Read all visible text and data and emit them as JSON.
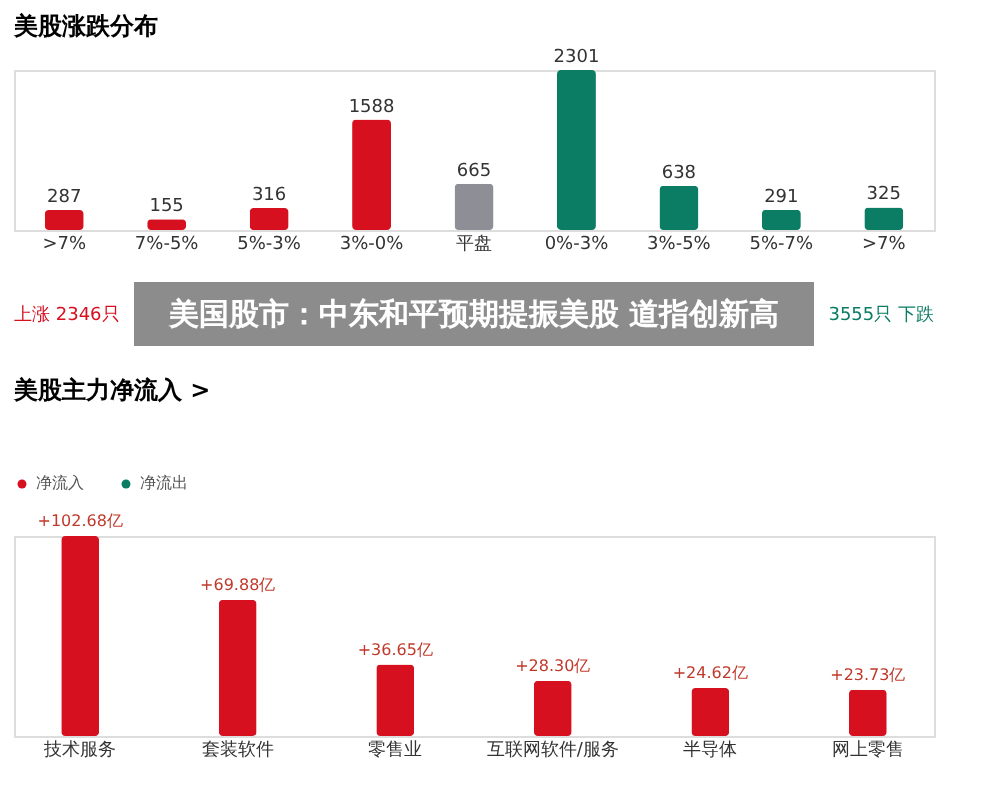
{
  "chart_data": [
    {
      "type": "bar",
      "title": "美股涨跌分布",
      "categories": [
        ">7%",
        "7%-5%",
        "5%-3%",
        "3%-0%",
        "平盘",
        "0%-3%",
        "3%-5%",
        "5%-7%",
        ">7%"
      ],
      "values": [
        287,
        155,
        316,
        1588,
        665,
        2301,
        638,
        291,
        325
      ],
      "colors": [
        "#d7101f",
        "#d7101f",
        "#d7101f",
        "#d7101f",
        "#8e8f96",
        "#0a7d64",
        "#0a7d64",
        "#0a7d64",
        "#0a7d64"
      ],
      "data_labels": true,
      "tick_labels": "x",
      "annotations": [
        "上涨 2346只",
        "3555只 下跌",
        "美国股市：中东和平预期提振美股 道指创新高"
      ]
    },
    {
      "type": "bar",
      "title": "美股主力净流入 >",
      "categories": [
        "技术服务",
        "套装软件",
        "零售业",
        "互联网软件/服务",
        "半导体",
        "网上零售"
      ],
      "series": [
        {
          "name": "净流入",
          "color": "#d7101f",
          "values": [
            102.68,
            69.88,
            36.65,
            28.3,
            24.62,
            23.73
          ],
          "value_labels": [
            "+102.68亿",
            "+69.88亿",
            "+36.65亿",
            "+28.30亿",
            "+24.62亿",
            "+23.73亿"
          ]
        },
        {
          "name": "净流出",
          "color": "#0a7d64",
          "values": [
            null,
            null,
            null,
            null,
            null,
            null
          ]
        }
      ],
      "tick_labels": "x",
      "legend": "top left"
    }
  ]
}
